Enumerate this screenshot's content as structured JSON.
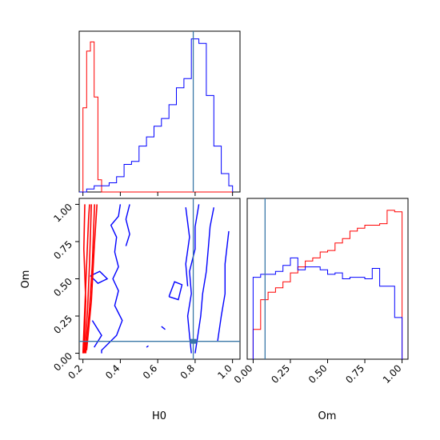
{
  "chart_data": {
    "type": "corner",
    "parameters": [
      "H0",
      "Om"
    ],
    "colors": {
      "red_run": "#ff0000",
      "blue_run": "#0000ff",
      "truth": "#3a78a8"
    },
    "truth": {
      "H0": 0.79,
      "Om": 0.08
    },
    "panels": [
      {
        "id": "H0-marginal",
        "type": "histogram",
        "xlim": [
          0.18,
          1.04
        ],
        "bin_edges": [
          0.18,
          0.2,
          0.22,
          0.24,
          0.26,
          0.28,
          0.3,
          0.32,
          0.34,
          0.36,
          0.38,
          0.4,
          0.42,
          0.44,
          0.46,
          0.48,
          0.5,
          0.52,
          0.54,
          0.56,
          0.58,
          0.6,
          0.62,
          0.64,
          0.66,
          0.68,
          0.7,
          0.72,
          0.74,
          0.76,
          0.78,
          0.8,
          0.82,
          0.84,
          0.86,
          0.88,
          0.9,
          0.92,
          0.94,
          0.96,
          0.98,
          1.0
        ],
        "series": [
          {
            "name": "red",
            "values": [
              0.0,
              0.55,
              0.92,
              0.98,
              0.62,
              0.08,
              0,
              0,
              0,
              0,
              0,
              0,
              0,
              0,
              0,
              0,
              0,
              0,
              0,
              0,
              0,
              0,
              0,
              0,
              0,
              0,
              0,
              0,
              0,
              0,
              0,
              0,
              0,
              0,
              0,
              0,
              0,
              0,
              0,
              0,
              0
            ]
          },
          {
            "name": "blue",
            "values": [
              0.0,
              0.0,
              0.02,
              0.02,
              0.04,
              0.04,
              0.04,
              0.04,
              0.06,
              0.06,
              0.1,
              0.1,
              0.18,
              0.18,
              0.2,
              0.2,
              0.3,
              0.3,
              0.36,
              0.36,
              0.43,
              0.43,
              0.48,
              0.48,
              0.57,
              0.57,
              0.68,
              0.68,
              0.74,
              0.74,
              1.0,
              1.0,
              0.97,
              0.97,
              0.63,
              0.63,
              0.3,
              0.3,
              0.12,
              0.12,
              0.04
            ]
          }
        ],
        "ylim": [
          0,
          1.05
        ]
      },
      {
        "id": "H0-Om-contour",
        "type": "contour",
        "xlim": [
          0.18,
          1.04
        ],
        "ylim": [
          -0.04,
          1.04
        ],
        "xticks": [
          0.2,
          0.4,
          0.6,
          0.8,
          1.0
        ],
        "xtick_labels": [
          "0.2",
          "0.4",
          "0.6",
          "0.8",
          "1.0"
        ],
        "yticks": [
          0.0,
          0.25,
          0.5,
          0.75,
          1.0
        ],
        "ytick_labels": [
          "0.00",
          "0.25",
          "0.50",
          "0.75",
          "1.00"
        ],
        "xlabel": "H0",
        "ylabel": "Om",
        "contours": [
          {
            "series": "blue",
            "points": [
              [
                0.4,
                1.0
              ],
              [
                0.39,
                0.92
              ],
              [
                0.35,
                0.86
              ],
              [
                0.38,
                0.78
              ],
              [
                0.37,
                0.68
              ],
              [
                0.39,
                0.58
              ],
              [
                0.36,
                0.5
              ],
              [
                0.39,
                0.42
              ],
              [
                0.37,
                0.32
              ],
              [
                0.41,
                0.22
              ],
              [
                0.38,
                0.12
              ],
              [
                0.3,
                0.02
              ],
              [
                0.3,
                0.0
              ]
            ]
          },
          {
            "series": "blue",
            "points": [
              [
                0.45,
                1.0
              ],
              [
                0.43,
                0.9
              ],
              [
                0.45,
                0.8
              ],
              [
                0.43,
                0.72
              ]
            ]
          },
          {
            "series": "blue",
            "points": [
              [
                0.25,
                0.22
              ],
              [
                0.3,
                0.12
              ],
              [
                0.26,
                0.04
              ]
            ]
          },
          {
            "series": "blue",
            "points": [
              [
                0.24,
                0.52
              ],
              [
                0.29,
                0.55
              ],
              [
                0.33,
                0.5
              ],
              [
                0.28,
                0.47
              ],
              [
                0.24,
                0.52
              ]
            ]
          },
          {
            "series": "blue",
            "points": [
              [
                0.82,
                1.0
              ],
              [
                0.8,
                0.85
              ],
              [
                0.8,
                0.7
              ],
              [
                0.77,
                0.55
              ],
              [
                0.78,
                0.4
              ],
              [
                0.76,
                0.25
              ],
              [
                0.77,
                0.12
              ],
              [
                0.78,
                0.0
              ]
            ]
          },
          {
            "series": "blue",
            "points": [
              [
                0.75,
                0.98
              ],
              [
                0.77,
                0.78
              ],
              [
                0.75,
                0.6
              ],
              [
                0.76,
                0.45
              ]
            ]
          },
          {
            "series": "blue",
            "points": [
              [
                0.66,
                0.38
              ],
              [
                0.69,
                0.48
              ],
              [
                0.73,
                0.46
              ],
              [
                0.71,
                0.36
              ],
              [
                0.66,
                0.38
              ]
            ]
          },
          {
            "series": "blue",
            "points": [
              [
                0.9,
                0.98
              ],
              [
                0.88,
                0.85
              ],
              [
                0.87,
                0.7
              ],
              [
                0.86,
                0.55
              ],
              [
                0.84,
                0.4
              ],
              [
                0.83,
                0.25
              ],
              [
                0.81,
                0.08
              ],
              [
                0.8,
                0.0
              ]
            ]
          },
          {
            "series": "blue",
            "points": [
              [
                0.98,
                0.82
              ],
              [
                0.96,
                0.6
              ],
              [
                0.96,
                0.4
              ],
              [
                0.94,
                0.25
              ],
              [
                0.92,
                0.08
              ]
            ]
          },
          {
            "series": "blue",
            "points": [
              [
                0.62,
                0.18
              ],
              [
                0.64,
                0.16
              ]
            ]
          },
          {
            "series": "blue",
            "points": [
              [
                0.54,
                0.04
              ],
              [
                0.55,
                0.05
              ]
            ]
          },
          {
            "series": "red",
            "points": [
              [
                0.2,
                0.0
              ],
              [
                0.21,
                0.3
              ],
              [
                0.22,
                0.6
              ],
              [
                0.23,
                0.9
              ],
              [
                0.235,
                1.0
              ]
            ]
          },
          {
            "series": "red",
            "points": [
              [
                0.21,
                0.0
              ],
              [
                0.225,
                0.3
              ],
              [
                0.235,
                0.6
              ],
              [
                0.245,
                1.0
              ]
            ]
          },
          {
            "series": "red",
            "points": [
              [
                0.215,
                0.0
              ],
              [
                0.235,
                0.3
              ],
              [
                0.25,
                0.6
              ],
              [
                0.262,
                1.0
              ]
            ]
          },
          {
            "series": "red",
            "points": [
              [
                0.205,
                0.0
              ],
              [
                0.215,
                0.35
              ],
              [
                0.205,
                0.7
              ],
              [
                0.21,
                1.0
              ]
            ]
          },
          {
            "series": "red",
            "points": [
              [
                0.22,
                0.02
              ],
              [
                0.245,
                0.35
              ],
              [
                0.26,
                0.7
              ],
              [
                0.275,
                1.0
              ]
            ]
          }
        ],
        "markers": [
          {
            "series": "blue",
            "x": 0.79,
            "y": 0.08
          }
        ]
      },
      {
        "id": "Om-marginal",
        "type": "histogram",
        "xlim": [
          -0.04,
          1.04
        ],
        "xticks": [
          0.0,
          0.25,
          0.5,
          0.75,
          1.0
        ],
        "xtick_labels": [
          "0.00",
          "0.25",
          "0.50",
          "0.75",
          "1.00"
        ],
        "xlabel": "Om",
        "bin_edges": [
          0.0,
          0.05,
          0.1,
          0.15,
          0.2,
          0.25,
          0.3,
          0.35,
          0.4,
          0.45,
          0.5,
          0.55,
          0.6,
          0.65,
          0.7,
          0.75,
          0.8,
          0.85,
          0.9,
          0.95,
          1.0
        ],
        "ylim": [
          0,
          1.08
        ],
        "series": [
          {
            "name": "red",
            "values": [
              0.2,
              0.4,
              0.45,
              0.48,
              0.52,
              0.58,
              0.62,
              0.66,
              0.68,
              0.72,
              0.73,
              0.78,
              0.81,
              0.86,
              0.88,
              0.9,
              0.9,
              0.91,
              1.0,
              0.99
            ]
          },
          {
            "name": "blue",
            "values": [
              0.55,
              0.57,
              0.57,
              0.59,
              0.63,
              0.68,
              0.6,
              0.62,
              0.62,
              0.6,
              0.57,
              0.58,
              0.54,
              0.55,
              0.55,
              0.54,
              0.61,
              0.49,
              0.49,
              0.28
            ]
          }
        ]
      }
    ]
  }
}
